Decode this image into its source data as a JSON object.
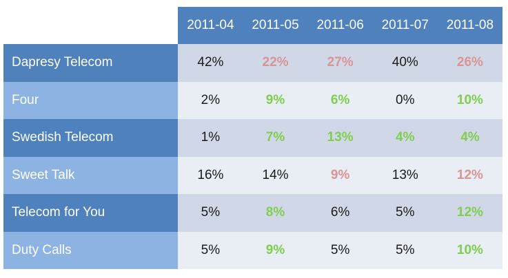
{
  "colors": {
    "header_bg": "#4f81bd",
    "label_dark_bg": "#4f81bd",
    "label_light_bg": "#8db3e2",
    "cell_dark_bg": "#d0d8e8",
    "cell_light_bg": "#e9edf4",
    "good_text": "#7fce4e",
    "bad_text": "#d99594",
    "normal_text": "#1a1a1a"
  },
  "chart_data": {
    "type": "table",
    "columns": [
      "2011-04",
      "2011-05",
      "2011-06",
      "2011-07",
      "2011-08"
    ],
    "rows": [
      {
        "label": "Dapresy Telecom",
        "cells": [
          {
            "text": "42%",
            "status": "normal"
          },
          {
            "text": "22%",
            "status": "bad"
          },
          {
            "text": "27%",
            "status": "bad"
          },
          {
            "text": "40%",
            "status": "normal"
          },
          {
            "text": "26%",
            "status": "bad"
          }
        ]
      },
      {
        "label": "Four",
        "cells": [
          {
            "text": "2%",
            "status": "normal"
          },
          {
            "text": "9%",
            "status": "good"
          },
          {
            "text": "6%",
            "status": "good"
          },
          {
            "text": "0%",
            "status": "normal"
          },
          {
            "text": "10%",
            "status": "good"
          }
        ]
      },
      {
        "label": "Swedish Telecom",
        "cells": [
          {
            "text": "1%",
            "status": "normal"
          },
          {
            "text": "7%",
            "status": "good"
          },
          {
            "text": "13%",
            "status": "good"
          },
          {
            "text": "4%",
            "status": "good"
          },
          {
            "text": "4%",
            "status": "good"
          }
        ]
      },
      {
        "label": "Sweet Talk",
        "cells": [
          {
            "text": "16%",
            "status": "normal"
          },
          {
            "text": "14%",
            "status": "normal"
          },
          {
            "text": "9%",
            "status": "bad"
          },
          {
            "text": "13%",
            "status": "normal"
          },
          {
            "text": "12%",
            "status": "bad"
          }
        ]
      },
      {
        "label": "Telecom for You",
        "cells": [
          {
            "text": "5%",
            "status": "normal"
          },
          {
            "text": "8%",
            "status": "good"
          },
          {
            "text": "6%",
            "status": "normal"
          },
          {
            "text": "5%",
            "status": "normal"
          },
          {
            "text": "12%",
            "status": "good"
          }
        ]
      },
      {
        "label": "Duty Calls",
        "cells": [
          {
            "text": "5%",
            "status": "normal"
          },
          {
            "text": "9%",
            "status": "good"
          },
          {
            "text": "5%",
            "status": "normal"
          },
          {
            "text": "5%",
            "status": "normal"
          },
          {
            "text": "10%",
            "status": "good"
          }
        ]
      }
    ]
  }
}
